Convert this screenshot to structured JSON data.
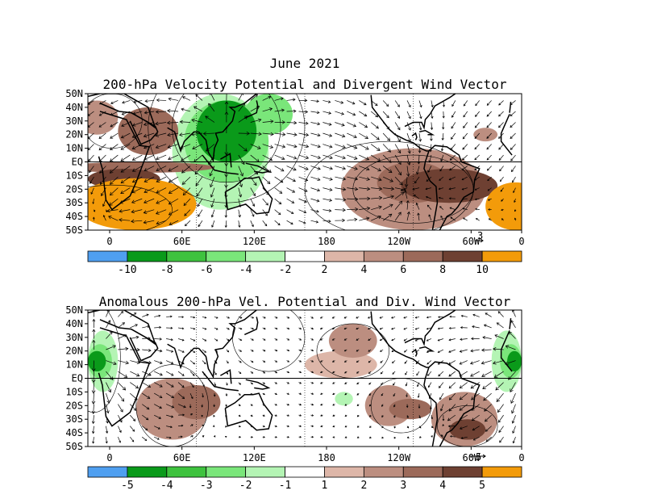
{
  "figure": {
    "main_title": "June 2021",
    "bg_color": "#ffffff",
    "line_color": "#000000"
  },
  "chart_data": [
    {
      "type": "heatmap",
      "title": "200-hPa Velocity Potential and Divergent Wind Vector",
      "y_tick_labels": [
        "50N",
        "40N",
        "30N",
        "20N",
        "10N",
        "EQ",
        "10S",
        "20S",
        "30S",
        "40S",
        "50S"
      ],
      "x_tick_labels": [
        "0",
        "60E",
        "120E",
        "180",
        "120W",
        "60W",
        "0"
      ],
      "vector_reference_label": "3",
      "colorbar": {
        "colors": [
          "#4f9ff0",
          "#0a9a1a",
          "#3ec23e",
          "#7ae67a",
          "#b4f4b4",
          "#ffffff",
          "#ddb6a8",
          "#bc8e80",
          "#9c6a5a",
          "#6e4032",
          "#f39b0a"
        ],
        "labels": [
          "-10",
          "-8",
          "-6",
          "-4",
          "-2",
          "2",
          "4",
          "6",
          "8",
          "10"
        ]
      },
      "levels": {
        "land": [
          {
            "lon": [
              -10,
              25
            ],
            "lat": [
              20,
              45
            ],
            "value": 5
          },
          {
            "lon": [
              25,
              75
            ],
            "lat": [
              5,
              40
            ],
            "value": 6
          },
          {
            "lon": [
              -20,
              105
            ],
            "lat": [
              -8,
              0
            ],
            "value": 7
          },
          {
            "lon": [
              0,
              60
            ],
            "lat": [
              -20,
              -5
            ],
            "value": 8
          },
          {
            "lon": [
              -10,
              90
            ],
            "lat": [
              -50,
              -12
            ],
            "value": 10
          },
          {
            "lon": [
              120,
              180
            ],
            "lat": [
              -40,
              -15
            ],
            "value": -2
          }
        ],
        "pacific_atlantic": [
          {
            "lon": [
              70,
              150
            ],
            "lat": [
              -35,
              50
            ],
            "value": -4
          },
          {
            "lon": [
              80,
              150
            ],
            "lat": [
              -15,
              45
            ],
            "value": -6
          },
          {
            "lon": [
              90,
              140
            ],
            "lat": [
              0,
              45
            ],
            "value": -10
          },
          {
            "lon": [
              130,
              170
            ],
            "lat": [
              20,
              50
            ],
            "value": -6
          },
          {
            "lon": [
              -150,
              -30
            ],
            "lat": [
              -50,
              10
            ],
            "value": 4
          },
          {
            "lon": [
              -120,
              -60
            ],
            "lat": [
              -30,
              0
            ],
            "value": 6
          },
          {
            "lon": [
              -100,
              -20
            ],
            "lat": [
              -30,
              -5
            ],
            "value": 8
          },
          {
            "lon": [
              -30,
              20
            ],
            "lat": [
              -50,
              -15
            ],
            "value": 10
          },
          {
            "lon": [
              -40,
              -20
            ],
            "lat": [
              15,
              25
            ],
            "value": 4
          },
          {
            "lon": [
              -75,
              -55
            ],
            "lat": [
              15,
              25
            ],
            "value": -2
          }
        ]
      }
    },
    {
      "type": "heatmap",
      "title": "Anomalous 200-hPa Vel. Potential and Div. Wind Vector",
      "y_tick_labels": [
        "50N",
        "40N",
        "30N",
        "20N",
        "10N",
        "EQ",
        "10S",
        "20S",
        "30S",
        "40S",
        "50S"
      ],
      "x_tick_labels": [
        "0",
        "60E",
        "120E",
        "180",
        "120W",
        "60W",
        "0"
      ],
      "vector_reference_label": "5",
      "colorbar": {
        "colors": [
          "#4f9ff0",
          "#0a9a1a",
          "#3ec23e",
          "#7ae67a",
          "#b4f4b4",
          "#ffffff",
          "#ddb6a8",
          "#bc8e80",
          "#9c6a5a",
          "#6e4032",
          "#f39b0a"
        ],
        "labels": [
          "-5",
          "-4",
          "-3",
          "-2",
          "-1",
          "1",
          "2",
          "3",
          "4",
          "5"
        ]
      },
      "levels": {
        "anomaly": [
          {
            "lon": [
              0,
              30
            ],
            "lat": [
              -20,
              50
            ],
            "value": -1
          },
          {
            "lon": [
              0,
              25
            ],
            "lat": [
              -10,
              35
            ],
            "value": -2
          },
          {
            "lon": [
              0,
              20
            ],
            "lat": [
              0,
              25
            ],
            "value": -3
          },
          {
            "lon": [
              0,
              15
            ],
            "lat": [
              5,
              20
            ],
            "value": -5
          },
          {
            "lon": [
              -30,
              0
            ],
            "lat": [
              -20,
              50
            ],
            "value": -1
          },
          {
            "lon": [
              -25,
              0
            ],
            "lat": [
              -10,
              35
            ],
            "value": -2
          },
          {
            "lon": [
              -18,
              0
            ],
            "lat": [
              0,
              25
            ],
            "value": -3
          },
          {
            "lon": [
              -12,
              0
            ],
            "lat": [
              5,
              20
            ],
            "value": -5
          },
          {
            "lon": [
              40,
              100
            ],
            "lat": [
              -45,
              0
            ],
            "value": 2
          },
          {
            "lon": [
              70,
              110
            ],
            "lat": [
              -30,
              -5
            ],
            "value": 3
          },
          {
            "lon": [
              180,
              240
            ],
            "lat": [
              0,
              20
            ],
            "value": 1
          },
          {
            "lon": [
              200,
              240
            ],
            "lat": [
              15,
              40
            ],
            "value": 2
          },
          {
            "lon": [
              230,
              270
            ],
            "lat": [
              -35,
              -5
            ],
            "value": 2
          },
          {
            "lon": [
              250,
              285
            ],
            "lat": [
              -30,
              -15
            ],
            "value": 3
          },
          {
            "lon": [
              285,
              340
            ],
            "lat": [
              -50,
              -10
            ],
            "value": 2
          },
          {
            "lon": [
              300,
              330
            ],
            "lat": [
              -45,
              -30
            ],
            "value": 4
          },
          {
            "lon": [
              205,
              220
            ],
            "lat": [
              -20,
              -10
            ],
            "value": -2
          }
        ]
      }
    }
  ]
}
